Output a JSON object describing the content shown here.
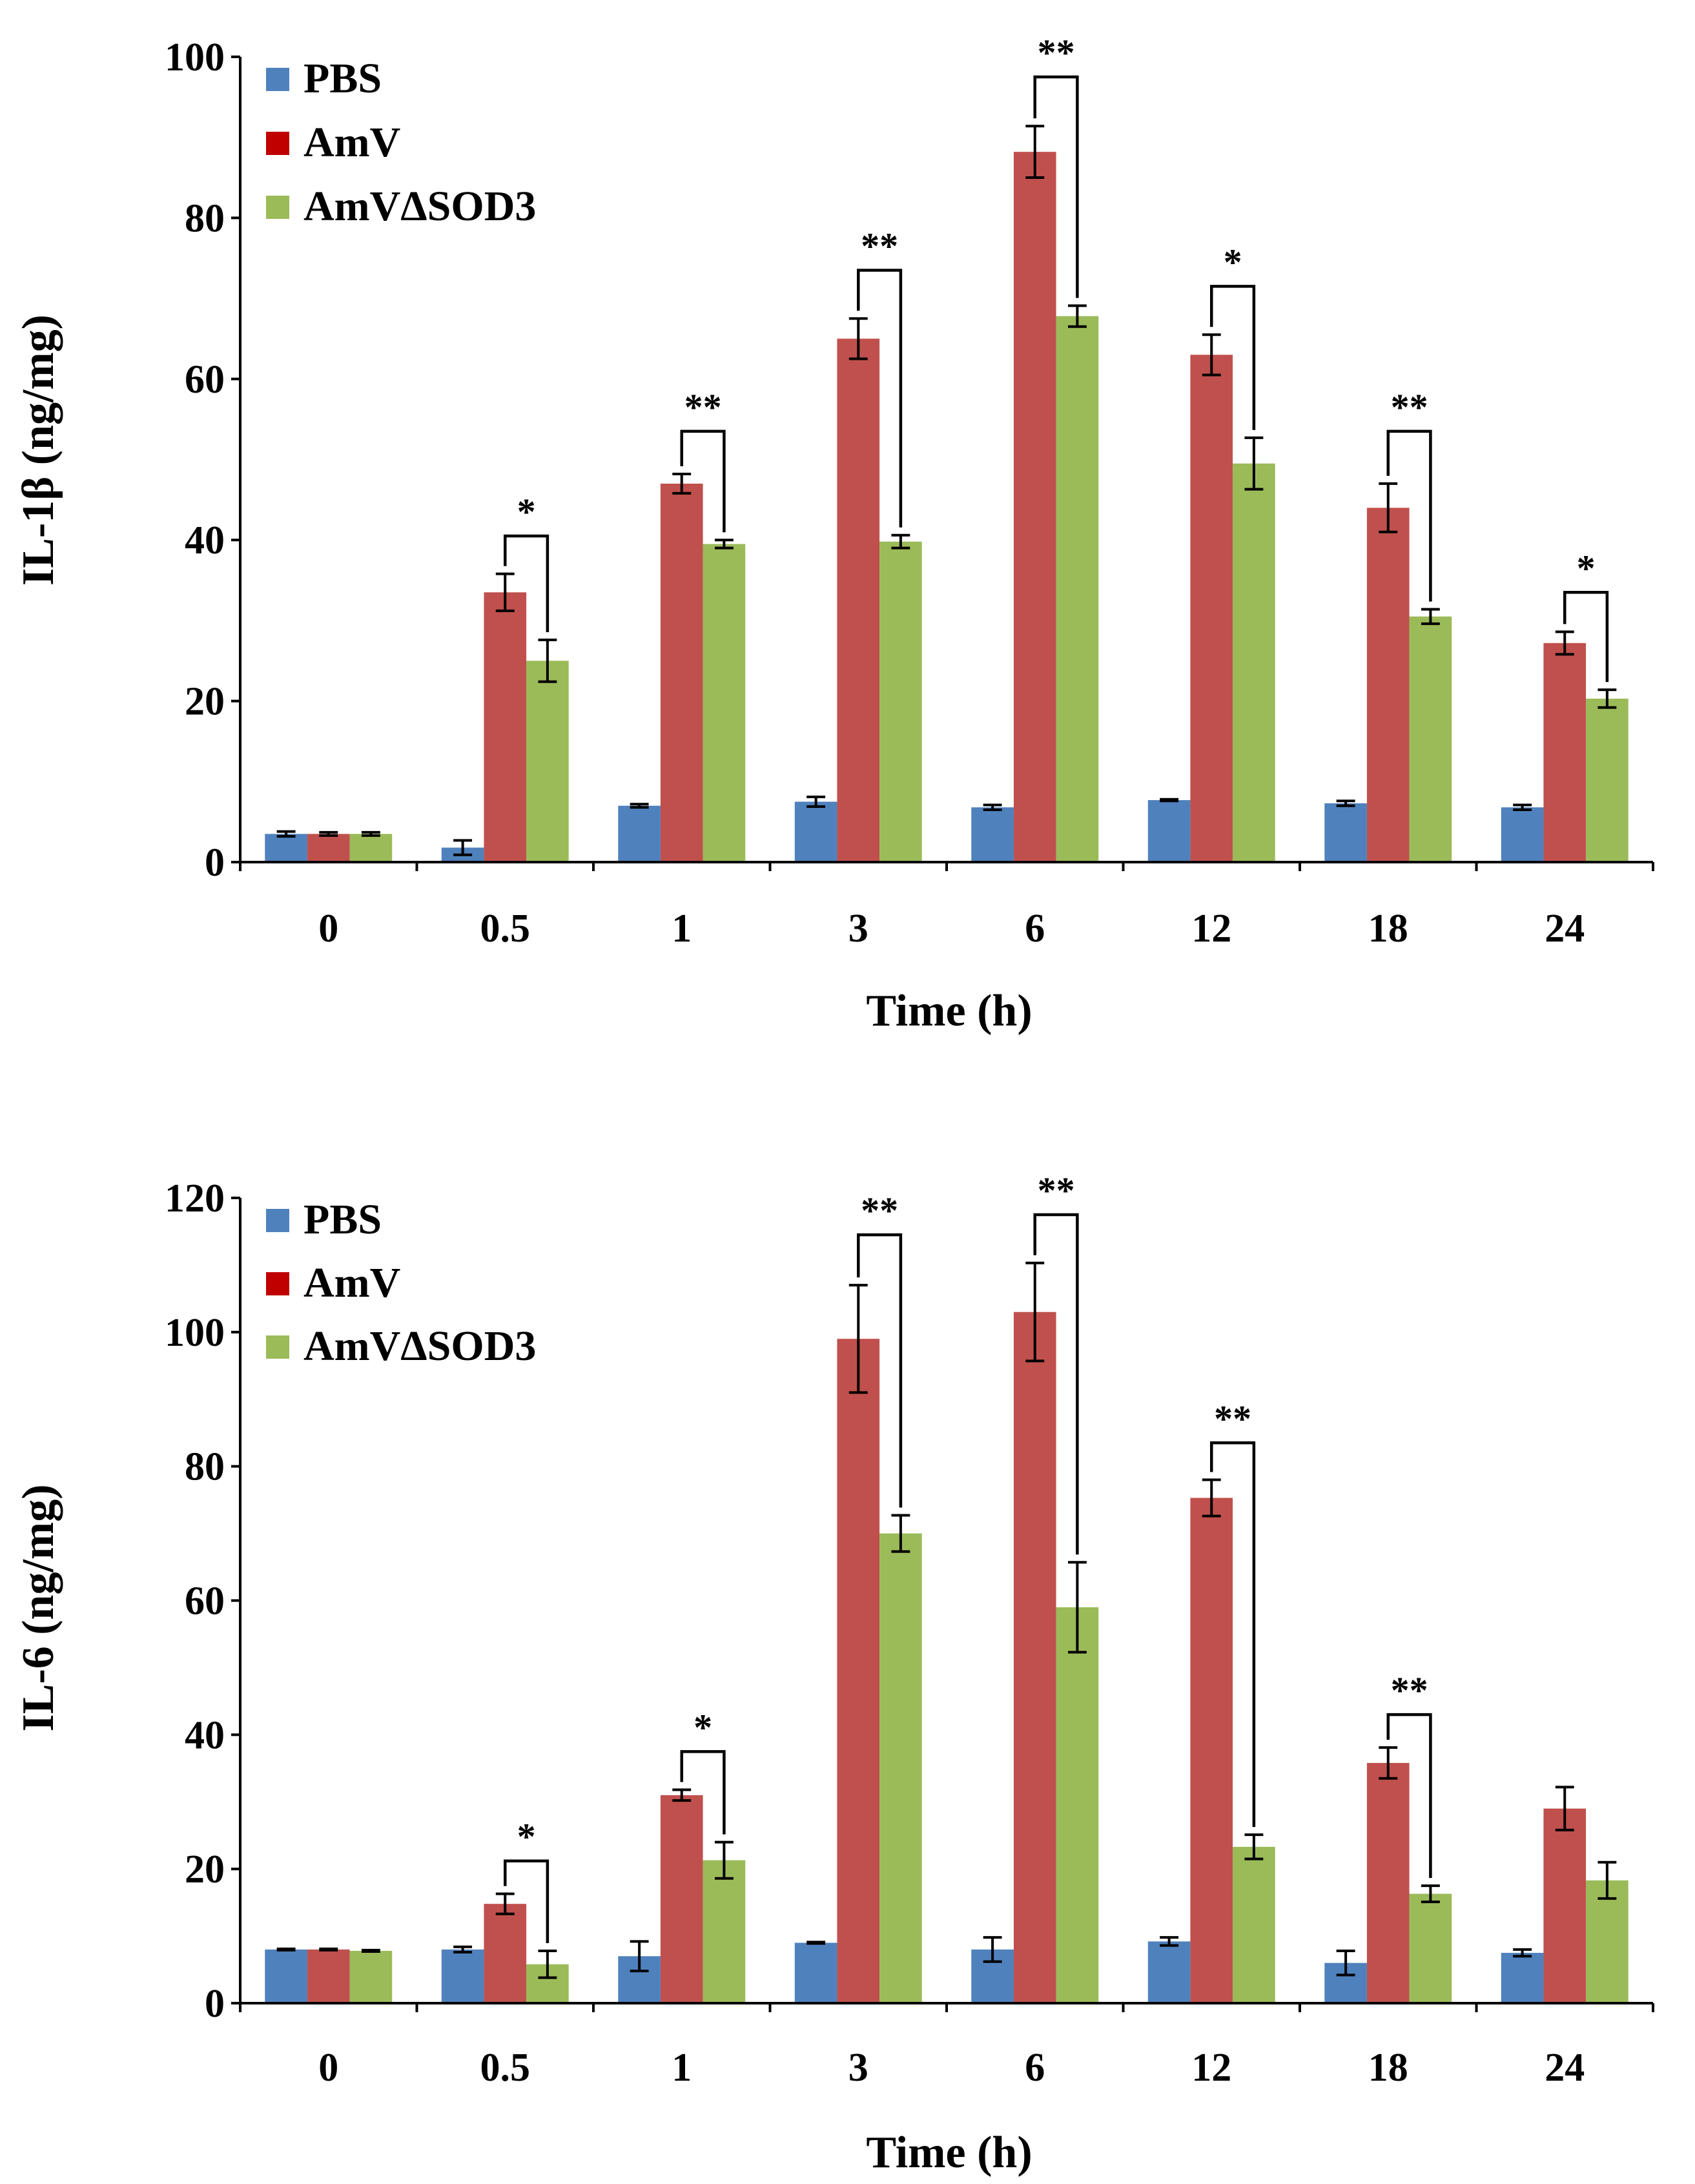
{
  "chart_data": [
    {
      "id": "il1b",
      "type": "bar",
      "title": "",
      "xlabel": "Time (h)",
      "ylabel": "IL-1β (ng/mg)",
      "ylim": [
        0,
        100
      ],
      "yticks": [
        0,
        20,
        40,
        60,
        80,
        100
      ],
      "grid": false,
      "legend_position": "top-left",
      "categories": [
        "0",
        "0.5",
        "1",
        "3",
        "6",
        "12",
        "18",
        "24"
      ],
      "series": [
        {
          "name": "PBS",
          "color": "#4f81bd",
          "values": [
            3.5,
            1.8,
            7.0,
            7.5,
            6.8,
            7.7,
            7.3,
            6.8
          ],
          "errors": [
            0.3,
            0.9,
            0.2,
            0.6,
            0.3,
            0.1,
            0.3,
            0.3
          ]
        },
        {
          "name": "AmV",
          "color": "#c0504d",
          "values": [
            3.5,
            33.5,
            47.0,
            65.0,
            88.2,
            63.0,
            44.0,
            27.2
          ],
          "errors": [
            0.2,
            2.3,
            1.2,
            2.5,
            3.2,
            2.5,
            3.0,
            1.4
          ]
        },
        {
          "name": "AmVΔSOD3",
          "color": "#9bbb59",
          "values": [
            3.5,
            25.0,
            39.5,
            39.8,
            67.8,
            49.5,
            30.5,
            20.3
          ],
          "errors": [
            0.2,
            2.6,
            0.5,
            0.8,
            1.3,
            3.2,
            0.9,
            1.1
          ]
        }
      ],
      "legend_swatch_colors": [
        "#4f81bd",
        "#c00000",
        "#9bbb59"
      ],
      "significance": [
        {
          "category": "0.5",
          "label": "*",
          "top": 40.5
        },
        {
          "category": "1",
          "label": "**",
          "top": 53.5
        },
        {
          "category": "3",
          "label": "**",
          "top": 73.5
        },
        {
          "category": "6",
          "label": "**",
          "top": 97.5
        },
        {
          "category": "12",
          "label": "*",
          "top": 71.5
        },
        {
          "category": "18",
          "label": "**",
          "top": 53.5
        },
        {
          "category": "24",
          "label": "*",
          "top": 33.5
        }
      ]
    },
    {
      "id": "il6",
      "type": "bar",
      "title": "",
      "xlabel": "Time (h)",
      "ylabel": "IL-6 (ng/mg)",
      "ylim": [
        0,
        120
      ],
      "yticks": [
        0,
        20,
        40,
        60,
        80,
        100,
        120
      ],
      "grid": false,
      "legend_position": "top-left",
      "categories": [
        "0",
        "0.5",
        "1",
        "3",
        "6",
        "12",
        "18",
        "24"
      ],
      "series": [
        {
          "name": "PBS",
          "color": "#4f81bd",
          "values": [
            8.0,
            8.0,
            7.0,
            9.0,
            8.0,
            9.2,
            6.0,
            7.5
          ],
          "errors": [
            0.1,
            0.4,
            2.2,
            0.1,
            1.8,
            0.6,
            1.8,
            0.5
          ]
        },
        {
          "name": "AmV",
          "color": "#c0504d",
          "values": [
            8.0,
            14.8,
            31.0,
            99.0,
            103.0,
            75.3,
            35.8,
            29.0
          ],
          "errors": [
            0.1,
            1.5,
            0.8,
            8.0,
            7.3,
            2.7,
            2.3,
            3.2
          ]
        },
        {
          "name": "AmVΔSOD3",
          "color": "#9bbb59",
          "values": [
            7.8,
            5.8,
            21.3,
            70.0,
            59.0,
            23.3,
            16.3,
            18.3
          ],
          "errors": [
            0.1,
            2.0,
            2.7,
            2.7,
            6.7,
            1.8,
            1.2,
            2.7
          ]
        }
      ],
      "legend_swatch_colors": [
        "#4f81bd",
        "#c00000",
        "#9bbb59"
      ],
      "significance": [
        {
          "category": "0.5",
          "label": "*",
          "top": 21.2
        },
        {
          "category": "1",
          "label": "*",
          "top": 37.5
        },
        {
          "category": "3",
          "label": "**",
          "top": 114.5
        },
        {
          "category": "6",
          "label": "**",
          "top": 117.5
        },
        {
          "category": "12",
          "label": "**",
          "top": 83.5
        },
        {
          "category": "18",
          "label": "**",
          "top": 43.0
        }
      ]
    }
  ]
}
